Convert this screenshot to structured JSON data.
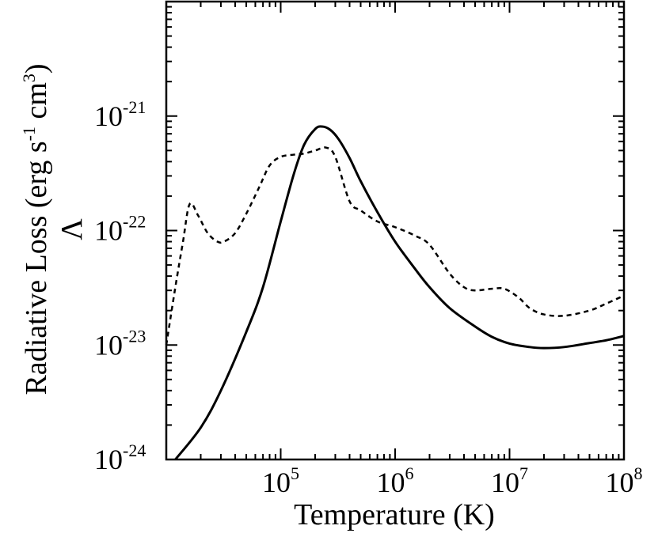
{
  "chart_data": {
    "type": "line",
    "xlabel": "Temperature (K)",
    "ylabel": {
      "text_before_sup1": "Radiative Loss (erg s",
      "sup1": "-1",
      "text_between": " cm",
      "sup2": "3",
      "text_after": ")",
      "symbol": "Λ"
    },
    "x_scale": "log",
    "y_scale": "log",
    "xlim": [
      10000,
      100000000
    ],
    "ylim": [
      1e-24,
      1e-20
    ],
    "grid": false,
    "x_ticks": [
      {
        "value": 100000,
        "base": "10",
        "exp": "5"
      },
      {
        "value": 1000000,
        "base": "10",
        "exp": "6"
      },
      {
        "value": 10000000,
        "base": "10",
        "exp": "7"
      },
      {
        "value": 100000000,
        "base": "10",
        "exp": "8"
      }
    ],
    "y_ticks": [
      {
        "value": 1e-24,
        "base": "10",
        "exp": "-24"
      },
      {
        "value": 1e-23,
        "base": "10",
        "exp": "-23"
      },
      {
        "value": 1e-22,
        "base": "10",
        "exp": "-22"
      },
      {
        "value": 1e-21,
        "base": "10",
        "exp": "-21"
      }
    ],
    "series": [
      {
        "style": "solid",
        "color": "#000000",
        "points": [
          [
            12000,
            1e-24
          ],
          [
            20000,
            1.9e-24
          ],
          [
            30000,
            4e-24
          ],
          [
            50000,
            1.3e-23
          ],
          [
            70000,
            3.2e-23
          ],
          [
            100000,
            1.2e-22
          ],
          [
            130000,
            3.1e-22
          ],
          [
            160000,
            5.6e-22
          ],
          [
            200000,
            7.7e-22
          ],
          [
            230000,
            8.1e-22
          ],
          [
            270000,
            7.6e-22
          ],
          [
            320000,
            6.3e-22
          ],
          [
            400000,
            4.3e-22
          ],
          [
            500000,
            2.7e-22
          ],
          [
            700000,
            1.45e-22
          ],
          [
            1000000,
            8e-23
          ],
          [
            1500000,
            4.6e-23
          ],
          [
            2000000,
            3.2e-23
          ],
          [
            3000000,
            2.1e-23
          ],
          [
            5000000,
            1.45e-23
          ],
          [
            7000000,
            1.18e-23
          ],
          [
            10000000,
            1.03e-23
          ],
          [
            15000000,
            9.6e-24
          ],
          [
            20000000,
            9.4e-24
          ],
          [
            30000000,
            9.6e-24
          ],
          [
            50000000,
            1.04e-23
          ],
          [
            70000000,
            1.1e-23
          ],
          [
            100000000,
            1.2e-23
          ]
        ]
      },
      {
        "style": "dashed",
        "color": "#000000",
        "points": [
          [
            10000,
            1e-23
          ],
          [
            12000,
            3.2e-23
          ],
          [
            14000,
            8e-23
          ],
          [
            16000,
            1.7e-22
          ],
          [
            19000,
            1.35e-22
          ],
          [
            23000,
            9.5e-23
          ],
          [
            28000,
            8e-23
          ],
          [
            32000,
            8e-23
          ],
          [
            40000,
            9.5e-23
          ],
          [
            50000,
            1.4e-22
          ],
          [
            65000,
            2.4e-22
          ],
          [
            80000,
            3.7e-22
          ],
          [
            100000,
            4.4e-22
          ],
          [
            130000,
            4.6e-22
          ],
          [
            160000,
            4.7e-22
          ],
          [
            200000,
            5e-22
          ],
          [
            250000,
            5.3e-22
          ],
          [
            300000,
            4.4e-22
          ],
          [
            400000,
            1.8e-22
          ],
          [
            500000,
            1.5e-22
          ],
          [
            700000,
            1.2e-22
          ],
          [
            1000000,
            1.07e-22
          ],
          [
            1500000,
            9e-23
          ],
          [
            2000000,
            7.5e-23
          ],
          [
            3000000,
            4.2e-23
          ],
          [
            4000000,
            3.2e-23
          ],
          [
            5000000,
            3e-23
          ],
          [
            7000000,
            3.1e-23
          ],
          [
            9000000,
            3.1e-23
          ],
          [
            12000000,
            2.6e-23
          ],
          [
            15000000,
            2.1e-23
          ],
          [
            20000000,
            1.85e-23
          ],
          [
            30000000,
            1.8e-23
          ],
          [
            50000000,
            2e-23
          ],
          [
            70000000,
            2.3e-23
          ],
          [
            100000000,
            2.7e-23
          ]
        ]
      }
    ]
  }
}
